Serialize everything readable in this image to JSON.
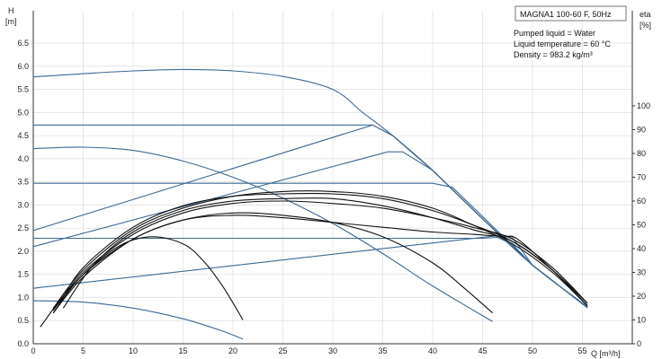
{
  "chart_data": {
    "type": "line",
    "title": "MAGNA1 100-60 F, 50Hz",
    "info_lines": [
      "Pumped liquid = Water",
      "Liquid temperature = 60 °C",
      "Density = 983.2 kg/m³"
    ],
    "xlabel": "Q [m³/h]",
    "ylabel_left": [
      "H",
      "[m]"
    ],
    "ylabel_right": [
      "eta",
      "[%]"
    ],
    "xlim": [
      0,
      60
    ],
    "ylim_left": [
      0,
      7.2
    ],
    "ylim_right": [
      0,
      140
    ],
    "x_ticks": [
      0,
      5,
      10,
      15,
      20,
      25,
      30,
      35,
      40,
      45,
      50,
      55
    ],
    "y_left_ticks": [
      0.0,
      0.5,
      1.0,
      1.5,
      2.0,
      2.5,
      3.0,
      3.5,
      4.0,
      4.5,
      5.0,
      5.5,
      6.0,
      6.5
    ],
    "y_right_ticks": [
      0,
      10,
      20,
      30,
      40,
      50,
      60,
      70,
      80,
      90,
      100
    ],
    "colors": {
      "head": "#3c6a96",
      "efficiency": "#111111",
      "grid": "#d9d9d9"
    },
    "head_series": [
      {
        "x": [
          0,
          5,
          10,
          15,
          20,
          25,
          30,
          33,
          36,
          40,
          45,
          50,
          55.5
        ],
        "y": [
          5.77,
          5.84,
          5.9,
          5.93,
          5.9,
          5.78,
          5.5,
          5.0,
          4.5,
          3.75,
          2.7,
          1.7,
          0.8
        ]
      },
      {
        "x": [
          0,
          34,
          36,
          40,
          45,
          50,
          55.5
        ],
        "y": [
          4.73,
          4.73,
          4.5,
          3.75,
          2.7,
          1.7,
          0.78
        ]
      },
      {
        "x": [
          0,
          34,
          36,
          40,
          45,
          50,
          55.5
        ],
        "y": [
          2.45,
          4.73,
          4.5,
          3.75,
          2.7,
          1.7,
          0.78
        ]
      },
      {
        "x": [
          0,
          35.5,
          37,
          40,
          45,
          50,
          55.5
        ],
        "y": [
          2.1,
          4.15,
          4.15,
          3.75,
          2.7,
          1.7,
          0.78
        ]
      },
      {
        "x": [
          0,
          40,
          42,
          45,
          50,
          55.5
        ],
        "y": [
          3.47,
          3.47,
          3.38,
          2.75,
          1.7,
          0.78
        ]
      },
      {
        "x": [
          0,
          45,
          46.5,
          48,
          50,
          55.5
        ],
        "y": [
          2.28,
          2.28,
          2.3,
          2.15,
          1.7,
          0.78
        ]
      },
      {
        "x": [
          0,
          47,
          48,
          50,
          55.5
        ],
        "y": [
          1.2,
          2.35,
          2.3,
          1.7,
          0.78
        ]
      },
      {
        "x": [
          0,
          5,
          10,
          15,
          20,
          25,
          30,
          35,
          40,
          46
        ],
        "y": [
          4.22,
          4.25,
          4.18,
          3.95,
          3.6,
          3.15,
          2.6,
          1.95,
          1.25,
          0.48
        ]
      },
      {
        "x": [
          0,
          5,
          10,
          15,
          19,
          21
        ],
        "y": [
          0.93,
          0.9,
          0.77,
          0.54,
          0.27,
          0.1
        ]
      }
    ],
    "efficiency_series": [
      {
        "x": [
          0.7,
          3,
          6,
          9,
          12,
          15,
          17,
          19,
          21
        ],
        "y": [
          7,
          20,
          33,
          42,
          45,
          42,
          35,
          24,
          10
        ]
      },
      {
        "x": [
          2,
          5,
          10,
          15,
          20,
          25,
          30,
          35,
          40,
          43,
          46
        ],
        "y": [
          13,
          28,
          44,
          52,
          55,
          54,
          51,
          45,
          34,
          24,
          13
        ]
      },
      {
        "x": [
          2,
          5,
          10,
          15,
          20,
          25,
          30,
          35,
          40,
          44,
          48,
          52,
          55.5
        ],
        "y": [
          15,
          31,
          48,
          57,
          62,
          64,
          64,
          62,
          57,
          50,
          42,
          30,
          16
        ]
      },
      {
        "x": [
          2.5,
          5,
          10,
          15,
          20,
          25,
          30,
          35,
          40,
          44,
          48,
          52,
          55.5
        ],
        "y": [
          16,
          32,
          49,
          58,
          62,
          63,
          63,
          61,
          56,
          50,
          43,
          31,
          16
        ]
      },
      {
        "x": [
          3,
          6,
          10,
          15,
          20,
          25,
          30,
          35,
          40,
          44,
          48,
          52,
          55.5
        ],
        "y": [
          15,
          33,
          47,
          56,
          60,
          61,
          61,
          58,
          53,
          48,
          43,
          31,
          17
        ]
      },
      {
        "x": [
          2,
          5,
          10,
          15,
          20,
          25,
          30,
          35,
          40,
          44,
          48,
          52,
          55.5
        ],
        "y": [
          14,
          30,
          46,
          55,
          59,
          60,
          59,
          57,
          53,
          49,
          44,
          32,
          17
        ]
      },
      {
        "x": [
          2,
          5,
          10,
          15,
          20,
          25,
          30,
          35,
          40,
          44,
          47,
          48.5,
          52,
          55.5
        ],
        "y": [
          13,
          29,
          44,
          52,
          54,
          53,
          51,
          49,
          47,
          46,
          45,
          44,
          31,
          16
        ]
      }
    ]
  }
}
